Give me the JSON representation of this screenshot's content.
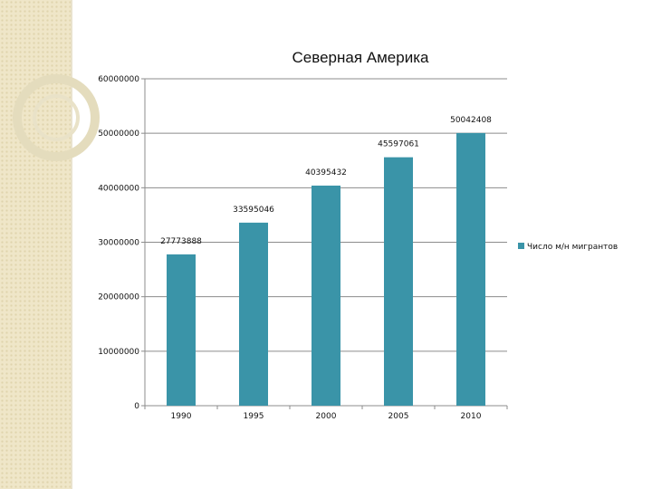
{
  "chart_data": {
    "type": "bar",
    "title": "Северная Америка",
    "categories": [
      "1990",
      "1995",
      "2000",
      "2005",
      "2010"
    ],
    "series": [
      {
        "name": "Число м/н мигрантов",
        "values": [
          27773888,
          33595046,
          40395432,
          45597061,
          50042408
        ],
        "color": "#3a94a8"
      }
    ],
    "data_labels": [
      "27773888",
      "33595046",
      "40395432",
      "45597061",
      "50042408"
    ],
    "y_ticks": [
      0,
      10000000,
      20000000,
      30000000,
      40000000,
      50000000,
      60000000
    ],
    "y_tick_labels": [
      "0",
      "10000000",
      "20000000",
      "30000000",
      "40000000",
      "50000000",
      "60000000"
    ],
    "ylim": [
      0,
      60000000
    ],
    "xlabel": "",
    "ylabel": "",
    "grid": true,
    "legend_position": "right"
  },
  "colors": {
    "bar": "#3a94a8",
    "grid": "#8c8c8c",
    "axis": "#8c8c8c"
  }
}
